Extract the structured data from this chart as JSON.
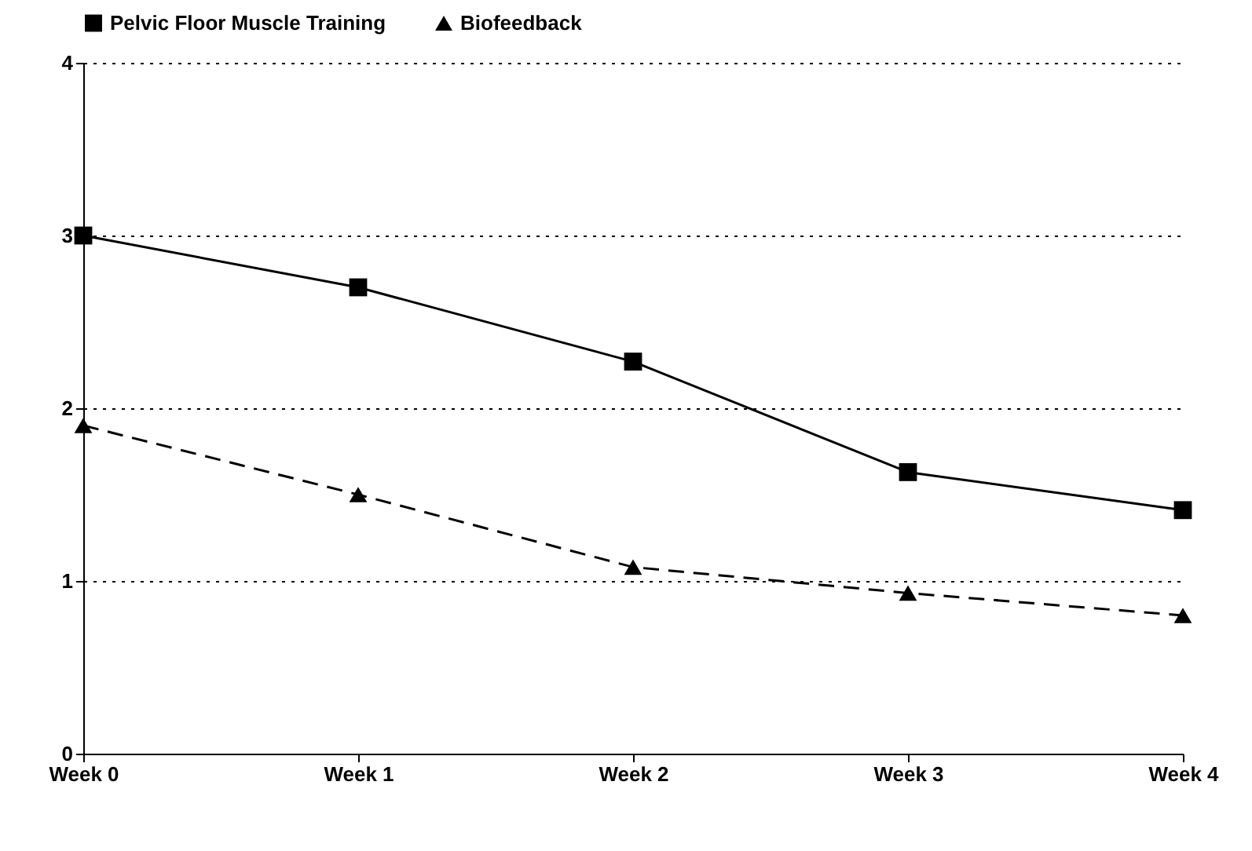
{
  "chart_data": {
    "type": "line",
    "categories": [
      "Week 0",
      "Week 1",
      "Week 2",
      "Week 3",
      "Week 4"
    ],
    "series": [
      {
        "name": "Pelvic Floor Muscle Training",
        "color": "#000000",
        "marker": "square",
        "line_style": "solid",
        "values": [
          3.0,
          2.7,
          2.27,
          1.63,
          1.41
        ]
      },
      {
        "name": "Biofeedback",
        "color": "#000000",
        "marker": "triangle",
        "line_style": "dashed",
        "values": [
          1.9,
          1.5,
          1.08,
          0.93,
          0.8
        ]
      }
    ],
    "ylim": [
      0,
      4
    ],
    "yticks": [
      0,
      1,
      2,
      3,
      4
    ],
    "grid": "y",
    "legend": "top"
  }
}
